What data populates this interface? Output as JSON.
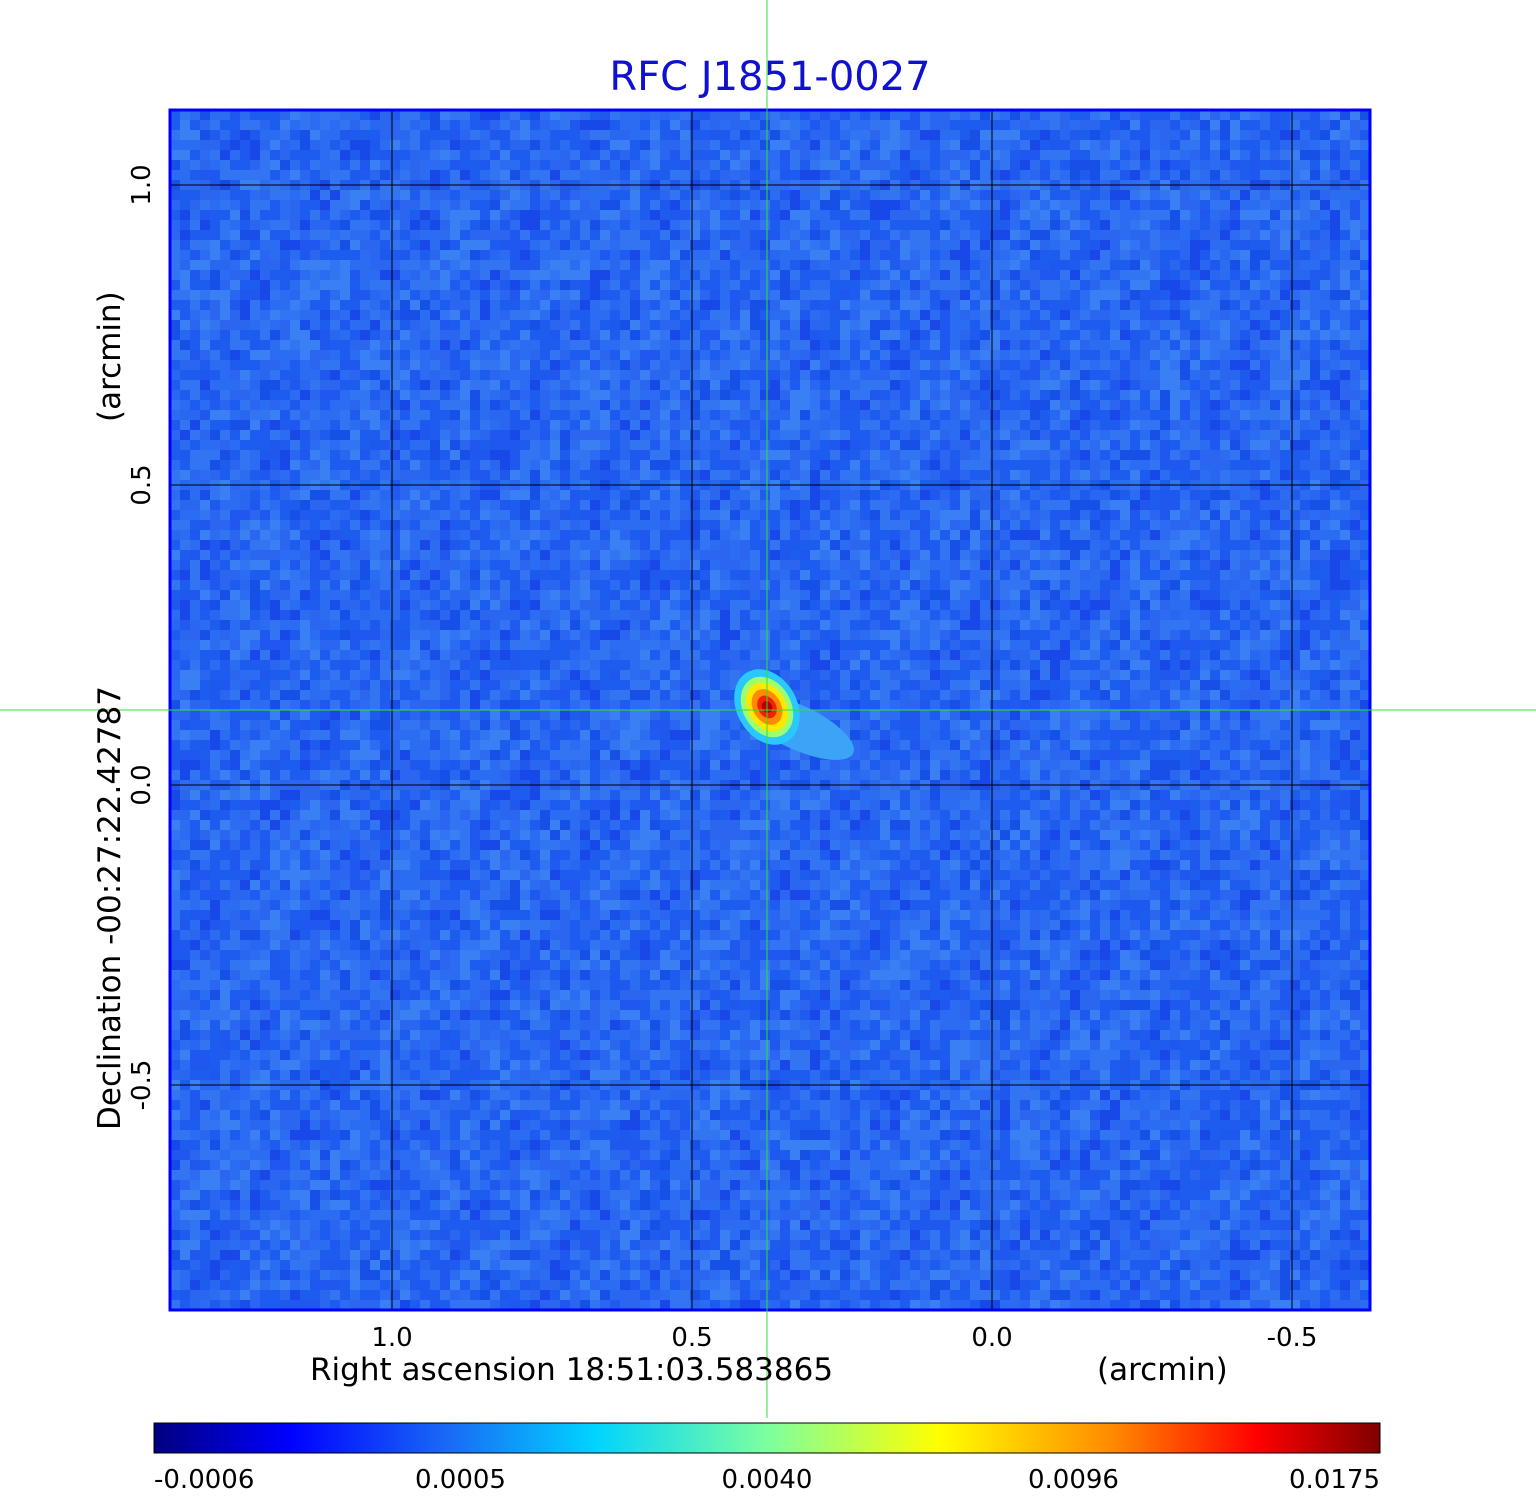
{
  "chart_data": {
    "type": "heatmap",
    "title": "RFC J1851-0027",
    "xlabel": "Right ascension  18:51:03.583865",
    "xunit": "(arcmin)",
    "ylabel": "Declination  -00:27:22.42787",
    "yunit": "(arcmin)",
    "xlim": [
      1.37,
      -0.63
    ],
    "ylim": [
      -0.875,
      1.125
    ],
    "x_ticks": [
      {
        "value": 1.0,
        "label": "1.0"
      },
      {
        "value": 0.5,
        "label": "0.5"
      },
      {
        "value": 0.0,
        "label": "0.0"
      },
      {
        "value": -0.5,
        "label": "-0.5"
      }
    ],
    "y_ticks": [
      {
        "value": 1.0,
        "label": "1.0"
      },
      {
        "value": 0.5,
        "label": "0.5"
      },
      {
        "value": 0.0,
        "label": "0.0"
      },
      {
        "value": -0.5,
        "label": "-0.5"
      }
    ],
    "grid": true,
    "crosshair": {
      "x": 0.375,
      "y": 0.125
    },
    "source": {
      "x": 0.375,
      "y": 0.13,
      "peak": 0.0175
    },
    "colorbar": {
      "ticks": [
        "-0.0006",
        "0.0005",
        "0.0040",
        "0.0096",
        "0.0175"
      ],
      "colormap": "jet"
    },
    "colors": {
      "title": "#1010d0",
      "frame": "#0000ff",
      "grid": "#000000",
      "crosshair": "#30e030",
      "background": "#2a6af0"
    }
  }
}
